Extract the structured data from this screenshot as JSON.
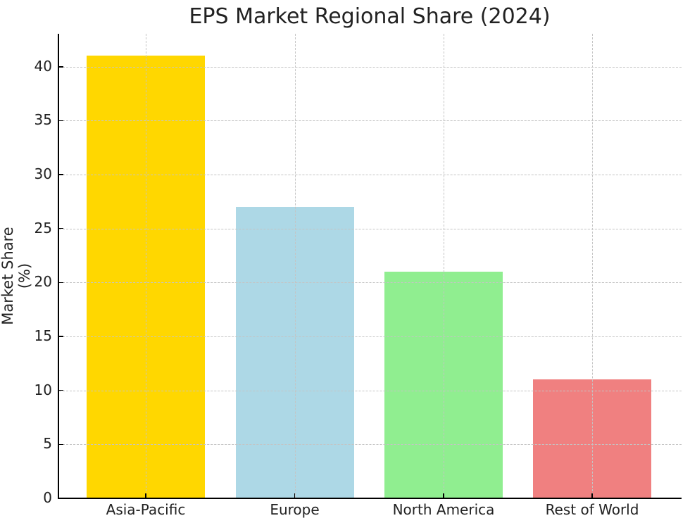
{
  "chart_data": {
    "type": "bar",
    "title": "EPS Market Regional Share (2024)",
    "xlabel": "",
    "ylabel": "Market Share (%)",
    "categories": [
      "Asia-Pacific",
      "Europe",
      "North America",
      "Rest of World"
    ],
    "values": [
      41,
      27,
      21,
      11
    ],
    "colors": [
      "#FFD700",
      "#ADD8E6",
      "#90EE90",
      "#F08080"
    ],
    "ylim": [
      0,
      43.05
    ],
    "yticks": [
      0,
      5,
      10,
      15,
      20,
      25,
      30,
      35,
      40
    ],
    "grid": true,
    "grid_style": "dashed",
    "legend": null
  }
}
